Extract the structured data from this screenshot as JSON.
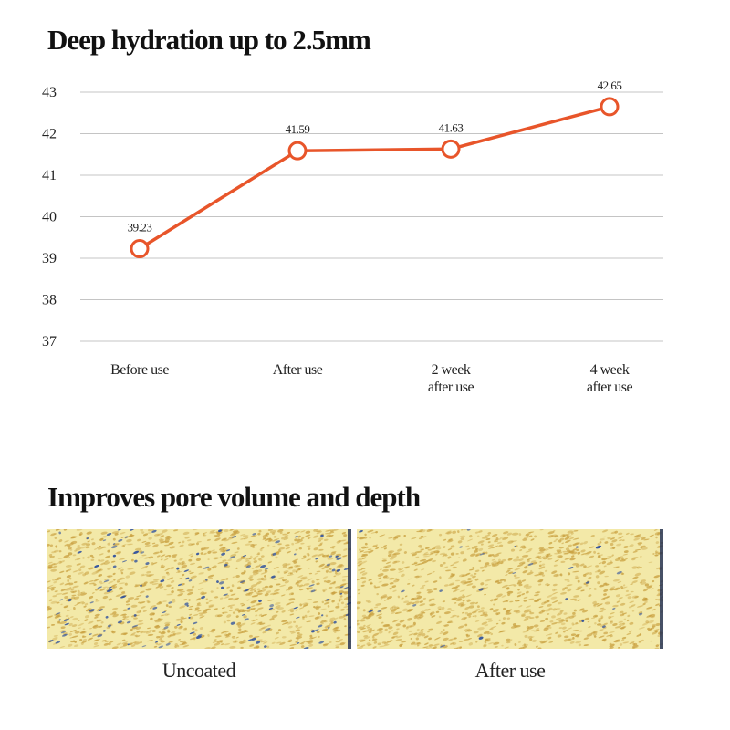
{
  "titles": {
    "chart": "Deep hydration up to 2.5mm",
    "pores": "Improves pore volume and depth"
  },
  "chart_data": {
    "type": "line",
    "title": "Deep hydration up to 2.5mm",
    "categories": [
      "Before use",
      "After use",
      "2 week\nafter use",
      "4 week\nafter use"
    ],
    "series": [
      {
        "values": [
          39.23,
          41.59,
          41.63,
          42.65
        ],
        "color": "#e8552a"
      }
    ],
    "data_labels": [
      "39.23",
      "41.59",
      "41.63",
      "42.65"
    ],
    "y_ticks": [
      37,
      38,
      39,
      40,
      41,
      42,
      43
    ],
    "ylim": [
      37,
      43
    ],
    "grid": true,
    "legend": "none",
    "xlabel": "",
    "ylabel": ""
  },
  "images": {
    "uncoated_caption": "Uncoated",
    "after_caption": "After use",
    "skin_color": "#f3e9a8",
    "pore_color": "#c9a040",
    "deep_pore_color": "#2d4f9e"
  }
}
